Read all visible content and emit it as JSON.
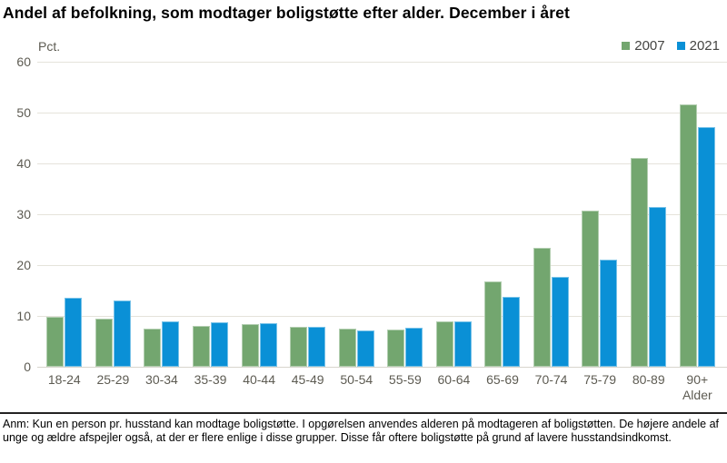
{
  "title": "Andel af befolkning, som modtager boligstøtte efter alder. December i året",
  "footnote": "Anm: Kun en person pr. husstand kan modtage boligstøtte. I opgørelsen anvendes alderen på modtageren af boligstøtten. De højere andele af unge og ældre afspejler også, at der er flere enlige i disse grupper. Disse får oftere boligstøtte på grund af lavere husstandsindkomst.",
  "chart_data": {
    "type": "bar",
    "title": "Andel af befolkning, som modtager boligstøtte efter alder. December i året",
    "unit_label": "Pct.",
    "xlabel": "Alder",
    "ylabel": "",
    "ylim": [
      0,
      60
    ],
    "yticks": [
      0,
      10,
      20,
      30,
      40,
      50,
      60
    ],
    "grid": "horizontal",
    "legend_position": "top-right",
    "categories": [
      "18-24",
      "25-29",
      "30-34",
      "35-39",
      "40-44",
      "45-49",
      "50-54",
      "55-59",
      "60-64",
      "65-69",
      "70-74",
      "75-79",
      "80-89",
      "90+"
    ],
    "series": [
      {
        "name": "2007",
        "color": "#73a66f",
        "values": [
          9.8,
          9.5,
          7.5,
          8.0,
          8.4,
          7.9,
          7.5,
          7.4,
          9.0,
          16.8,
          23.4,
          30.7,
          41.0,
          51.6
        ]
      },
      {
        "name": "2021",
        "color": "#0a90d6",
        "values": [
          13.6,
          13.1,
          9.0,
          8.8,
          8.5,
          7.8,
          7.2,
          7.7,
          9.0,
          13.8,
          17.6,
          21.0,
          31.4,
          47.2
        ]
      }
    ]
  },
  "colors": {
    "series_2007": "#73a66f",
    "series_2021": "#0a90d6",
    "gridline": "#e5e3db",
    "axis_text": "#5d5b52",
    "divider": "#232222"
  }
}
